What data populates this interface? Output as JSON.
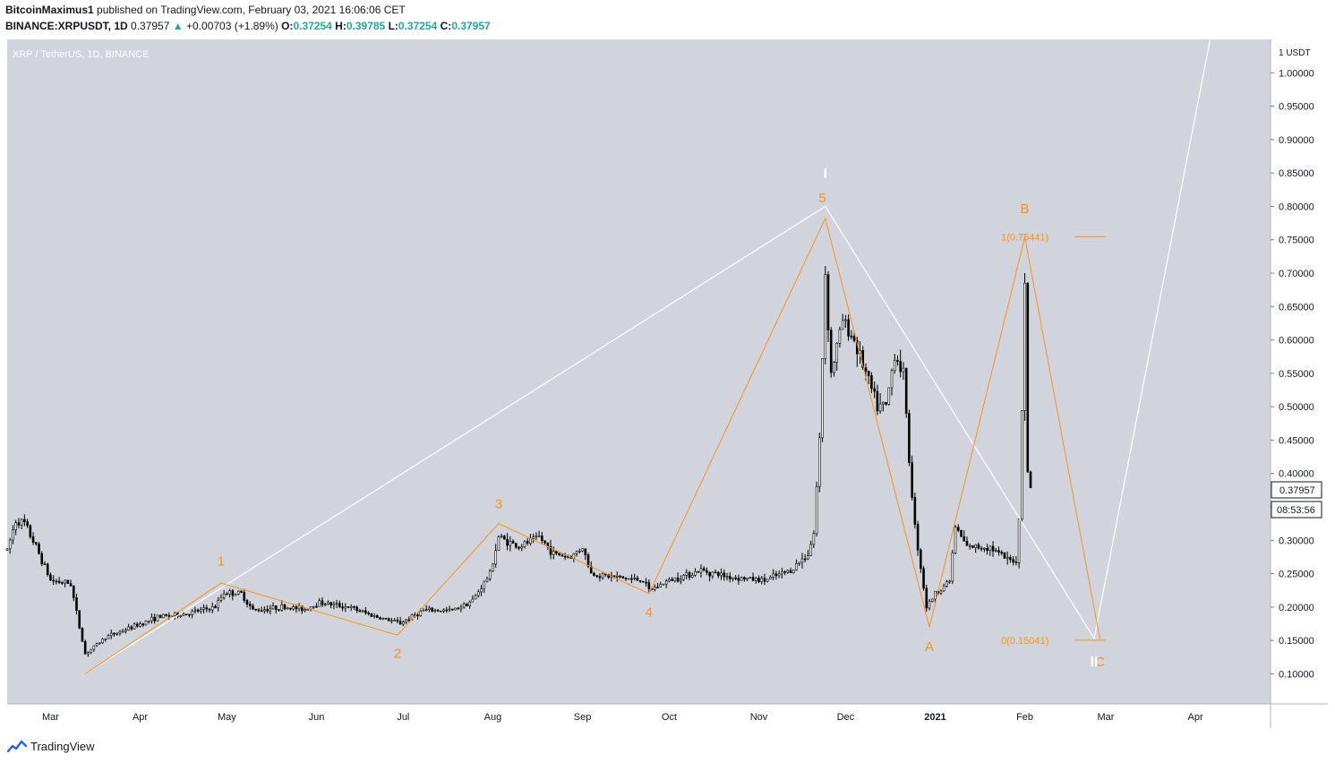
{
  "header": {
    "author": "BitcoinMaximus1",
    "published_text": "published on TradingView.com, February 03, 2021 16:06:06 CET",
    "symbol": "BINANCE:XRPUSDT, 1D",
    "last": "0.37957",
    "change_arrow": "▲",
    "change": "+0.00703 (+1.89%)",
    "o_label": "O:",
    "o": "0.37254",
    "h_label": "H:",
    "h": "0.39785",
    "l_label": "L:",
    "l": "0.37254",
    "c_label": "C:",
    "c": "0.37957"
  },
  "footer": {
    "brand": "TradingView",
    "logo_icon": "tradingview-logo-icon"
  },
  "colors": {
    "plot_bg": "#d1d4dc",
    "candle": "#000000",
    "wave_orange": "#f7931a",
    "wave_white": "#ffffff",
    "price_box_border": "#131722"
  },
  "chart_data": {
    "type": "candlestick",
    "title": "XRP / TetherUS, 1D, BINANCE",
    "x_range": [
      "2020-02-15",
      "2021-04-27"
    ],
    "y_range": [
      0.055,
      1.05
    ],
    "y_unit_label": "1 USDT",
    "y_ticks": [
      "1.00000",
      "0.95000",
      "0.90000",
      "0.85000",
      "0.80000",
      "0.75000",
      "0.70000",
      "0.65000",
      "0.60000",
      "0.55000",
      "0.50000",
      "0.45000",
      "0.40000",
      "0.35000",
      "0.30000",
      "0.25000",
      "0.20000",
      "0.15000",
      "0.10000"
    ],
    "x_ticks": [
      {
        "label": "Mar",
        "date": "2020-03-01"
      },
      {
        "label": "Apr",
        "date": "2020-04-01"
      },
      {
        "label": "May",
        "date": "2020-05-01"
      },
      {
        "label": "Jun",
        "date": "2020-06-01"
      },
      {
        "label": "Jul",
        "date": "2020-07-01"
      },
      {
        "label": "Aug",
        "date": "2020-08-01"
      },
      {
        "label": "Sep",
        "date": "2020-09-01"
      },
      {
        "label": "Oct",
        "date": "2020-10-01"
      },
      {
        "label": "Nov",
        "date": "2020-11-01"
      },
      {
        "label": "Dec",
        "date": "2020-12-01"
      },
      {
        "label": "2021",
        "date": "2021-01-01"
      },
      {
        "label": "Feb",
        "date": "2021-02-01"
      },
      {
        "label": "Mar",
        "date": "2021-03-01"
      },
      {
        "label": "Apr",
        "date": "2021-04-01"
      }
    ],
    "price_path": [
      [
        "2020-02-15",
        0.285
      ],
      [
        "2020-02-18",
        0.33
      ],
      [
        "2020-02-21",
        0.325
      ],
      [
        "2020-02-25",
        0.29
      ],
      [
        "2020-03-01",
        0.24
      ],
      [
        "2020-03-08",
        0.235
      ],
      [
        "2020-03-11",
        0.17
      ],
      [
        "2020-03-13",
        0.13
      ],
      [
        "2020-03-16",
        0.14
      ],
      [
        "2020-03-20",
        0.155
      ],
      [
        "2020-03-28",
        0.168
      ],
      [
        "2020-04-07",
        0.185
      ],
      [
        "2020-04-17",
        0.19
      ],
      [
        "2020-04-27",
        0.2
      ],
      [
        "2020-04-30",
        0.222
      ],
      [
        "2020-05-06",
        0.22
      ],
      [
        "2020-05-10",
        0.195
      ],
      [
        "2020-05-20",
        0.2
      ],
      [
        "2020-05-28",
        0.197
      ],
      [
        "2020-06-02",
        0.207
      ],
      [
        "2020-06-12",
        0.2
      ],
      [
        "2020-06-22",
        0.185
      ],
      [
        "2020-06-30",
        0.176
      ],
      [
        "2020-07-08",
        0.195
      ],
      [
        "2020-07-18",
        0.195
      ],
      [
        "2020-07-25",
        0.21
      ],
      [
        "2020-07-31",
        0.25
      ],
      [
        "2020-08-03",
        0.305
      ],
      [
        "2020-08-10",
        0.29
      ],
      [
        "2020-08-17",
        0.305
      ],
      [
        "2020-08-22",
        0.28
      ],
      [
        "2020-08-28",
        0.275
      ],
      [
        "2020-09-01",
        0.29
      ],
      [
        "2020-09-04",
        0.25
      ],
      [
        "2020-09-12",
        0.245
      ],
      [
        "2020-09-22",
        0.24
      ],
      [
        "2020-09-24",
        0.225
      ],
      [
        "2020-10-01",
        0.24
      ],
      [
        "2020-10-12",
        0.255
      ],
      [
        "2020-10-22",
        0.245
      ],
      [
        "2020-11-03",
        0.24
      ],
      [
        "2020-11-12",
        0.255
      ],
      [
        "2020-11-18",
        0.28
      ],
      [
        "2020-11-20",
        0.31
      ],
      [
        "2020-11-22",
        0.45
      ],
      [
        "2020-11-24",
        0.7
      ],
      [
        "2020-11-26",
        0.55
      ],
      [
        "2020-11-30",
        0.63
      ],
      [
        "2020-12-04",
        0.6
      ],
      [
        "2020-12-08",
        0.55
      ],
      [
        "2020-12-12",
        0.5
      ],
      [
        "2020-12-15",
        0.5
      ],
      [
        "2020-12-18",
        0.58
      ],
      [
        "2020-12-21",
        0.55
      ],
      [
        "2020-12-23",
        0.42
      ],
      [
        "2020-12-25",
        0.32
      ],
      [
        "2020-12-29",
        0.2
      ],
      [
        "2021-01-01",
        0.22
      ],
      [
        "2021-01-06",
        0.24
      ],
      [
        "2021-01-08",
        0.32
      ],
      [
        "2021-01-12",
        0.29
      ],
      [
        "2021-01-20",
        0.29
      ],
      [
        "2021-01-26",
        0.27
      ],
      [
        "2021-01-29",
        0.27
      ],
      [
        "2021-01-30",
        0.33
      ],
      [
        "2021-01-31",
        0.5
      ],
      [
        "2021-02-01",
        0.69
      ],
      [
        "2021-02-02",
        0.4
      ],
      [
        "2021-02-03",
        0.37957
      ]
    ],
    "orange_waves": {
      "points": [
        [
          "2020-03-13",
          0.1
        ],
        [
          "2020-04-29",
          0.236
        ],
        [
          "2020-06-29",
          0.158
        ],
        [
          "2020-08-03",
          0.325
        ],
        [
          "2020-09-24",
          0.22
        ],
        [
          "2020-11-24",
          0.782
        ],
        [
          "2020-12-30",
          0.17
        ],
        [
          "2021-02-01",
          0.754
        ],
        [
          "2021-02-27",
          0.152
        ]
      ],
      "labels": [
        {
          "text": "1",
          "date": "2020-04-29",
          "price": 0.262
        },
        {
          "text": "2",
          "date": "2020-06-29",
          "price": 0.124
        },
        {
          "text": "3",
          "date": "2020-08-03",
          "price": 0.348
        },
        {
          "text": "4",
          "date": "2020-09-24",
          "price": 0.186
        },
        {
          "text": "5",
          "date": "2020-11-23",
          "price": 0.806
        },
        {
          "text": "A",
          "date": "2020-12-30",
          "price": 0.134
        },
        {
          "text": "B",
          "date": "2021-02-01",
          "price": 0.79
        },
        {
          "text": "C",
          "date": "2021-02-27",
          "price": 0.111
        }
      ]
    },
    "white_waves": {
      "points": [
        [
          "2020-03-13",
          0.1
        ],
        [
          "2020-11-24",
          0.8
        ],
        [
          "2021-02-25",
          0.153
        ],
        [
          "2021-04-07",
          1.07
        ]
      ],
      "labels": [
        {
          "text": "I",
          "date": "2020-11-24",
          "price": 0.842
        },
        {
          "text": "II",
          "date": "2021-02-25",
          "price": 0.111
        }
      ]
    },
    "fib_levels": [
      {
        "label": "1(0.75441)",
        "price": 0.75441,
        "from": "2021-01-30",
        "to": "2021-02-16"
      },
      {
        "label": "0(0.15041)",
        "price": 0.15041,
        "from": "2021-01-30",
        "to": "2021-02-16"
      }
    ],
    "current_price_label": "0.37957",
    "countdown_label": "08:53:56"
  }
}
